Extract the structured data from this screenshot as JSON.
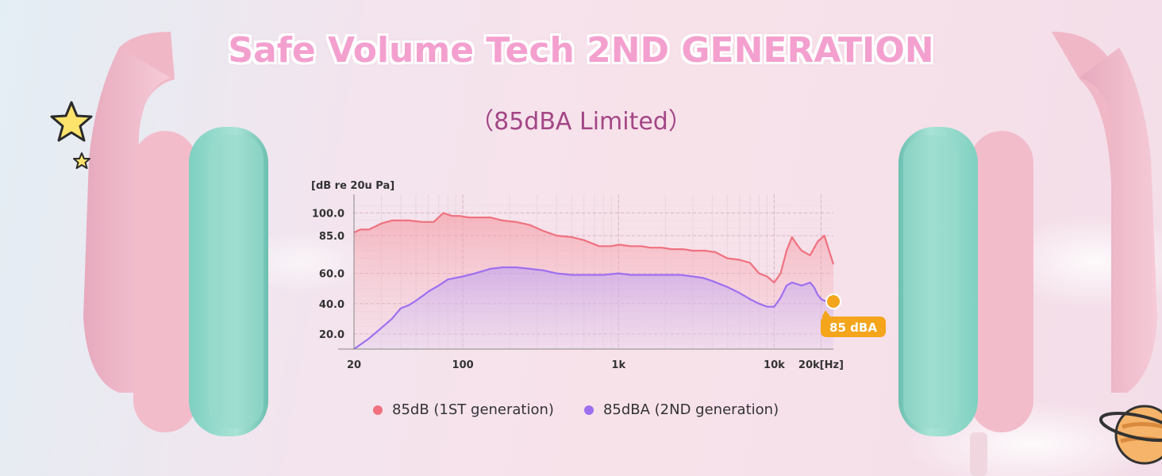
{
  "header": {
    "title": "Safe Volume Tech 2ND GENERATION",
    "subtitle": "（85dBA Limited）"
  },
  "colors": {
    "series_1": "#f0717f",
    "series_2": "#9e6ff0",
    "accent": "#f5a51c",
    "cushion": "#8fd6c8",
    "shell": "#f1bccb"
  },
  "icons": [
    "star-icon",
    "small-star-icon",
    "planet-icon",
    "left-headphone-cup",
    "right-headphone-cup"
  ],
  "chart_data": {
    "type": "area",
    "ylabel": "[dB re 20u Pa]",
    "xlabel": "",
    "x_scale": "log",
    "xlim": [
      20,
      24000
    ],
    "ylim": [
      10,
      107
    ],
    "yticks": [
      20,
      40,
      60,
      85,
      100
    ],
    "ytick_labels": [
      "20.0",
      "40.0",
      "60.0",
      "85.0",
      "100.0"
    ],
    "xticks": [
      20,
      100,
      1000,
      10000,
      20000
    ],
    "xtick_labels": [
      "20",
      "100",
      "1k",
      "10k",
      "20k[Hz]"
    ],
    "grid": true,
    "legend_position": "bottom",
    "series": [
      {
        "name": "85dB (1ST generation)",
        "x": [
          20,
          22,
          25,
          30,
          35,
          45,
          55,
          65,
          75,
          85,
          95,
          110,
          130,
          150,
          180,
          220,
          270,
          330,
          400,
          500,
          600,
          750,
          900,
          1000,
          1200,
          1400,
          1600,
          1900,
          2200,
          2600,
          3000,
          3600,
          4200,
          5000,
          6000,
          7000,
          8000,
          9000,
          10000,
          11000,
          12000,
          13000,
          14000,
          15000,
          17000,
          19000,
          21000,
          24000
        ],
        "y": [
          87,
          89,
          89,
          93,
          95,
          95,
          94,
          94,
          100,
          98,
          98,
          97,
          97,
          97,
          95,
          94,
          92,
          88,
          85,
          84,
          82,
          78,
          78,
          79,
          78,
          78,
          77,
          77,
          76,
          76,
          75,
          75,
          74,
          70,
          69,
          67,
          60,
          58,
          54,
          60,
          75,
          84,
          79,
          75,
          72,
          81,
          85,
          66
        ]
      },
      {
        "name": "85dBA (2ND generation)",
        "x": [
          20,
          25,
          30,
          35,
          40,
          45,
          50,
          55,
          60,
          70,
          80,
          100,
          120,
          150,
          180,
          220,
          270,
          330,
          400,
          500,
          650,
          800,
          1000,
          1200,
          1500,
          2000,
          2500,
          3000,
          3500,
          4000,
          5000,
          6000,
          7000,
          8000,
          9000,
          10000,
          11000,
          12000,
          13000,
          14000,
          15000,
          16000,
          17000,
          18000,
          19000,
          20000,
          22000,
          24000
        ],
        "y": [
          10,
          17,
          24,
          30,
          37,
          39,
          42,
          45,
          48,
          52,
          56,
          58,
          60,
          63,
          64,
          64,
          63,
          62,
          60,
          59,
          59,
          59,
          60,
          59,
          59,
          59,
          59,
          58,
          57,
          55,
          51,
          47,
          43,
          40,
          38,
          38,
          44,
          52,
          54,
          53,
          52,
          53,
          54,
          51,
          46,
          43,
          41,
          40
        ]
      }
    ],
    "annotations": [
      "85 dBA"
    ]
  }
}
